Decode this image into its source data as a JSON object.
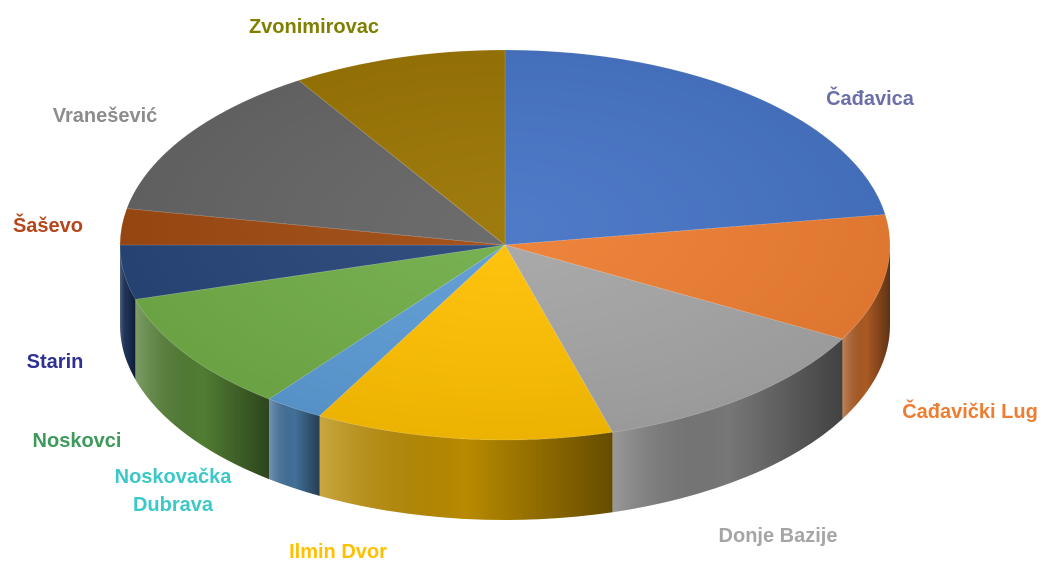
{
  "chart_data": {
    "type": "pie",
    "title": "",
    "slices": [
      {
        "label": "Čađavica",
        "value": 22.5,
        "color": "#4472C4",
        "label_color": "#6A6FA8"
      },
      {
        "label": "Čađavički Lug",
        "value": 10.5,
        "color": "#ED7D31",
        "label_color": "#ED7D31"
      },
      {
        "label": "Donje Bazije",
        "value": 12.5,
        "color": "#A5A5A5",
        "label_color": "#A5A5A5"
      },
      {
        "label": "Ilmin Dvor",
        "value": 12.5,
        "color": "#FFC000",
        "label_color": "#FFC000"
      },
      {
        "label": "Noskovačka Dubrava",
        "value": 2.5,
        "color": "#5B9BD5",
        "label_color": "#3CC8C8"
      },
      {
        "label": "Noskovci",
        "value": 10.0,
        "color": "#70AD47",
        "label_color": "#3D9A5B"
      },
      {
        "label": "Starin",
        "value": 4.5,
        "color": "#264478",
        "label_color": "#2E3192"
      },
      {
        "label": "Šaševo",
        "value": 3.0,
        "color": "#9E480E",
        "label_color": "#B5451B"
      },
      {
        "label": "Vranešević",
        "value": 13.0,
        "color": "#636363",
        "label_color": "#8C8C8C"
      },
      {
        "label": "Zvonimirovac",
        "value": 9.0,
        "color": "#997300",
        "label_color": "#7F7F00"
      }
    ],
    "legend": "none",
    "style": "3d-pie"
  }
}
